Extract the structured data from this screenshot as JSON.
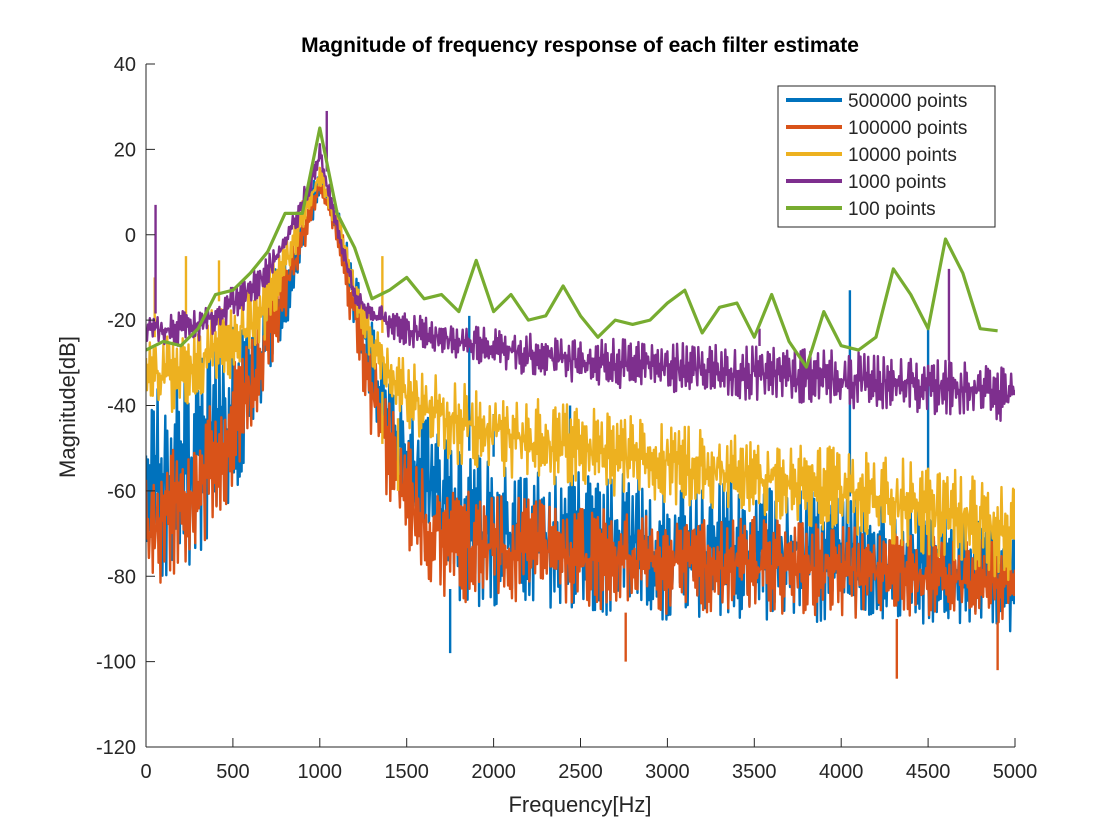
{
  "chart_data": {
    "type": "line",
    "title": "Magnitude of frequency response of each filter estimate",
    "xlabel": "Frequency[Hz]",
    "ylabel": "Magnitude[dB]",
    "xlim": [
      0,
      5000
    ],
    "ylim": [
      -120,
      40
    ],
    "xticks": [
      0,
      500,
      1000,
      1500,
      2000,
      2500,
      3000,
      3500,
      4000,
      4500,
      5000
    ],
    "yticks": [
      40,
      20,
      0,
      -20,
      -40,
      -60,
      -80,
      -100,
      -120
    ],
    "grid": false,
    "legend_position": "top-right",
    "series": [
      {
        "name": "500000 points",
        "color": "#0072BD",
        "envelope_x": [
          0,
          100,
          200,
          300,
          400,
          500,
          600,
          700,
          800,
          900,
          1000,
          1100,
          1200,
          1300,
          1400,
          1500,
          1600,
          1700,
          1800,
          2000,
          2200,
          2500,
          3000,
          3500,
          4000,
          4500,
          5000
        ],
        "envelope_upper": [
          -36,
          -34,
          -32,
          -29,
          -25,
          -20,
          -15,
          -10,
          -4,
          6,
          16,
          8,
          -8,
          -20,
          -30,
          -36,
          -42,
          -46,
          -50,
          -52,
          -54,
          -55,
          -57,
          -58,
          -61,
          -64,
          -68
        ],
        "envelope_lower": [
          -76,
          -82,
          -80,
          -78,
          -72,
          -62,
          -50,
          -38,
          -24,
          -8,
          10,
          -2,
          -22,
          -40,
          -54,
          -64,
          -74,
          -80,
          -86,
          -88,
          -90,
          -91,
          -91,
          -90,
          -91,
          -92,
          -93
        ],
        "spikes": [
          [
            4500,
            -22
          ],
          [
            4050,
            -13
          ],
          [
            1860,
            -19
          ],
          [
            2000,
            -42
          ],
          [
            1750,
            -98
          ],
          [
            2440,
            -40
          ]
        ]
      },
      {
        "name": "100000 points",
        "color": "#D95319",
        "envelope_x": [
          0,
          100,
          200,
          300,
          400,
          500,
          600,
          700,
          800,
          900,
          1000,
          1100,
          1200,
          1300,
          1400,
          1500,
          1600,
          1700,
          1800,
          2000,
          2200,
          2500,
          3000,
          3500,
          4000,
          4500,
          5000
        ],
        "envelope_upper": [
          -56,
          -52,
          -48,
          -44,
          -38,
          -30,
          -22,
          -14,
          -6,
          4,
          14,
          5,
          -10,
          -24,
          -38,
          -48,
          -54,
          -56,
          -58,
          -60,
          -62,
          -63,
          -65,
          -66,
          -68,
          -70,
          -72
        ],
        "envelope_lower": [
          -84,
          -82,
          -78,
          -76,
          -70,
          -60,
          -48,
          -34,
          -20,
          -6,
          10,
          -4,
          -26,
          -48,
          -64,
          -76,
          -82,
          -86,
          -86,
          -87,
          -88,
          -88,
          -89,
          -89,
          -90,
          -90,
          -91
        ],
        "spikes": [
          [
            4320,
            -104
          ],
          [
            4900,
            -102
          ],
          [
            2760,
            -100
          ]
        ]
      },
      {
        "name": "10000 points",
        "color": "#EDB120",
        "envelope_x": [
          0,
          100,
          200,
          300,
          400,
          500,
          600,
          700,
          800,
          900,
          1000,
          1100,
          1200,
          1300,
          1400,
          1500,
          1600,
          1700,
          1800,
          2000,
          2200,
          2500,
          3000,
          3500,
          4000,
          4500,
          5000
        ],
        "envelope_upper": [
          -25,
          -23,
          -22,
          -20,
          -16,
          -14,
          -11,
          -7,
          -2,
          8,
          16,
          6,
          -10,
          -20,
          -25,
          -29,
          -31,
          -33,
          -34,
          -36,
          -38,
          -40,
          -44,
          -47,
          -50,
          -53,
          -57
        ],
        "envelope_lower": [
          -40,
          -42,
          -42,
          -40,
          -38,
          -34,
          -30,
          -24,
          -12,
          0,
          12,
          0,
          -18,
          -32,
          -40,
          -46,
          -50,
          -52,
          -54,
          -56,
          -58,
          -60,
          -63,
          -66,
          -70,
          -75,
          -82
        ],
        "spikes": [
          [
            1360,
            -5
          ],
          [
            1360,
            -49
          ],
          [
            1450,
            -60
          ],
          [
            230,
            -5
          ],
          [
            420,
            -6
          ],
          [
            50,
            -10
          ]
        ]
      },
      {
        "name": "1000 points",
        "color": "#7E2F8E",
        "envelope_x": [
          0,
          100,
          200,
          300,
          400,
          500,
          600,
          700,
          800,
          900,
          1000,
          1100,
          1200,
          1300,
          1400,
          1500,
          1600,
          1700,
          1800,
          2000,
          2200,
          2500,
          3000,
          3500,
          4000,
          4500,
          5000
        ],
        "envelope_upper": [
          -19,
          -18,
          -18,
          -17,
          -14,
          -12,
          -9,
          -5,
          0,
          10,
          22,
          4,
          -12,
          -16,
          -17,
          -18,
          -19,
          -20,
          -21,
          -22,
          -23,
          -24,
          -25,
          -26,
          -27,
          -29,
          -31
        ],
        "envelope_lower": [
          -25,
          -26,
          -26,
          -25,
          -23,
          -20,
          -17,
          -12,
          -4,
          4,
          16,
          0,
          -16,
          -22,
          -24,
          -26,
          -27,
          -28,
          -29,
          -31,
          -33,
          -35,
          -37,
          -39,
          -41,
          -42,
          -44
        ],
        "spikes": [
          [
            55,
            7
          ],
          [
            1040,
            29
          ],
          [
            4620,
            -8
          ],
          [
            3530,
            -22
          ]
        ]
      },
      {
        "name": "100 points",
        "color": "#77AC30",
        "x": [
          0,
          100,
          200,
          300,
          400,
          500,
          600,
          700,
          800,
          900,
          1000,
          1100,
          1200,
          1300,
          1400,
          1500,
          1600,
          1700,
          1800,
          1900,
          2000,
          2100,
          2200,
          2300,
          2400,
          2500,
          2600,
          2700,
          2800,
          2900,
          3000,
          3100,
          3200,
          3300,
          3400,
          3500,
          3600,
          3700,
          3800,
          3900,
          4000,
          4100,
          4200,
          4300,
          4400,
          4500,
          4600,
          4700,
          4800,
          4900
        ],
        "y": [
          -27,
          -25,
          -26,
          -22,
          -14,
          -13,
          -9,
          -4,
          5,
          5,
          25,
          5,
          -3,
          -15,
          -13,
          -10,
          -15,
          -14,
          -18,
          -6,
          -18,
          -14,
          -20,
          -19,
          -12,
          -19,
          -24,
          -20,
          -21,
          -20,
          -16,
          -13,
          -23,
          -17,
          -16,
          -24,
          -14,
          -25,
          -31,
          -18,
          -26,
          -27,
          -24,
          -8,
          -14,
          -22,
          -1,
          -9,
          -22,
          -22.5
        ]
      }
    ]
  }
}
